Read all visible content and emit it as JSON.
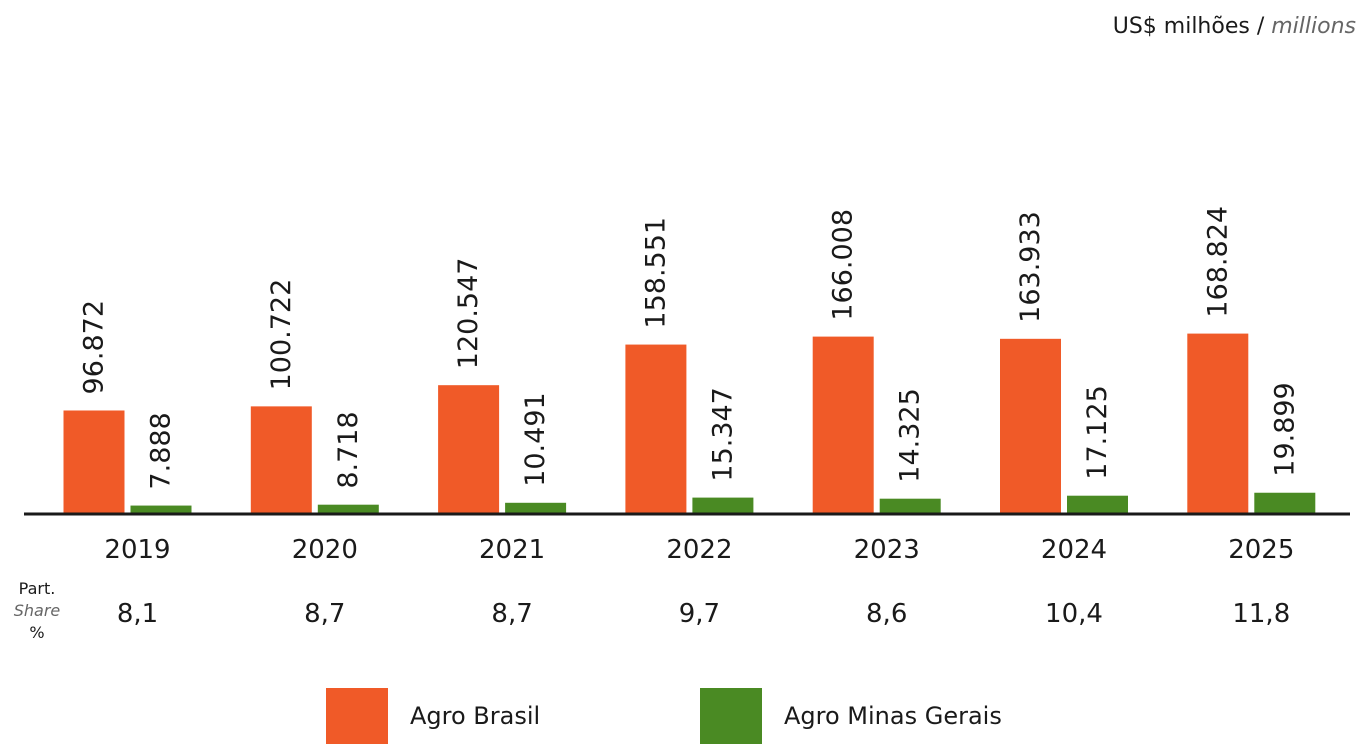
{
  "unit_label": {
    "pt": "US$ milhões /",
    "en": "millions"
  },
  "share_label": {
    "pt": "Part.",
    "en": "Share",
    "unit": "%"
  },
  "colors": {
    "agro_brasil": "#F05A28",
    "agro_minas_gerais": "#4A8A23",
    "axis": "#1a1a1a",
    "text": "#1a1a1a"
  },
  "legend": [
    {
      "label": "Agro Brasil",
      "color": "#F05A28"
    },
    {
      "label": "Agro Minas Gerais",
      "color": "#4A8A23"
    }
  ],
  "chart_data": {
    "type": "bar",
    "categories": [
      "2019",
      "2020",
      "2021",
      "2022",
      "2023",
      "2024",
      "2025"
    ],
    "series": [
      {
        "name": "Agro Brasil",
        "values": [
          96.872,
          100.722,
          120.547,
          158.551,
          166.008,
          163.933,
          168.824
        ],
        "labels": [
          "96.872",
          "100.722",
          "120.547",
          "158.551",
          "166.008",
          "163.933",
          "168.824"
        ]
      },
      {
        "name": "Agro Minas Gerais",
        "values": [
          7.888,
          8.718,
          10.491,
          15.347,
          14.325,
          17.125,
          19.899
        ],
        "labels": [
          "7.888",
          "8.718",
          "10.491",
          "15.347",
          "14.325",
          "17.125",
          "19.899"
        ]
      }
    ],
    "share": [
      "8,1",
      "8,7",
      "8,7",
      "9,7",
      "8,6",
      "10,4",
      "11,8"
    ],
    "ylim": [
      0,
      180
    ],
    "grid": false,
    "legend_position": "bottom"
  }
}
